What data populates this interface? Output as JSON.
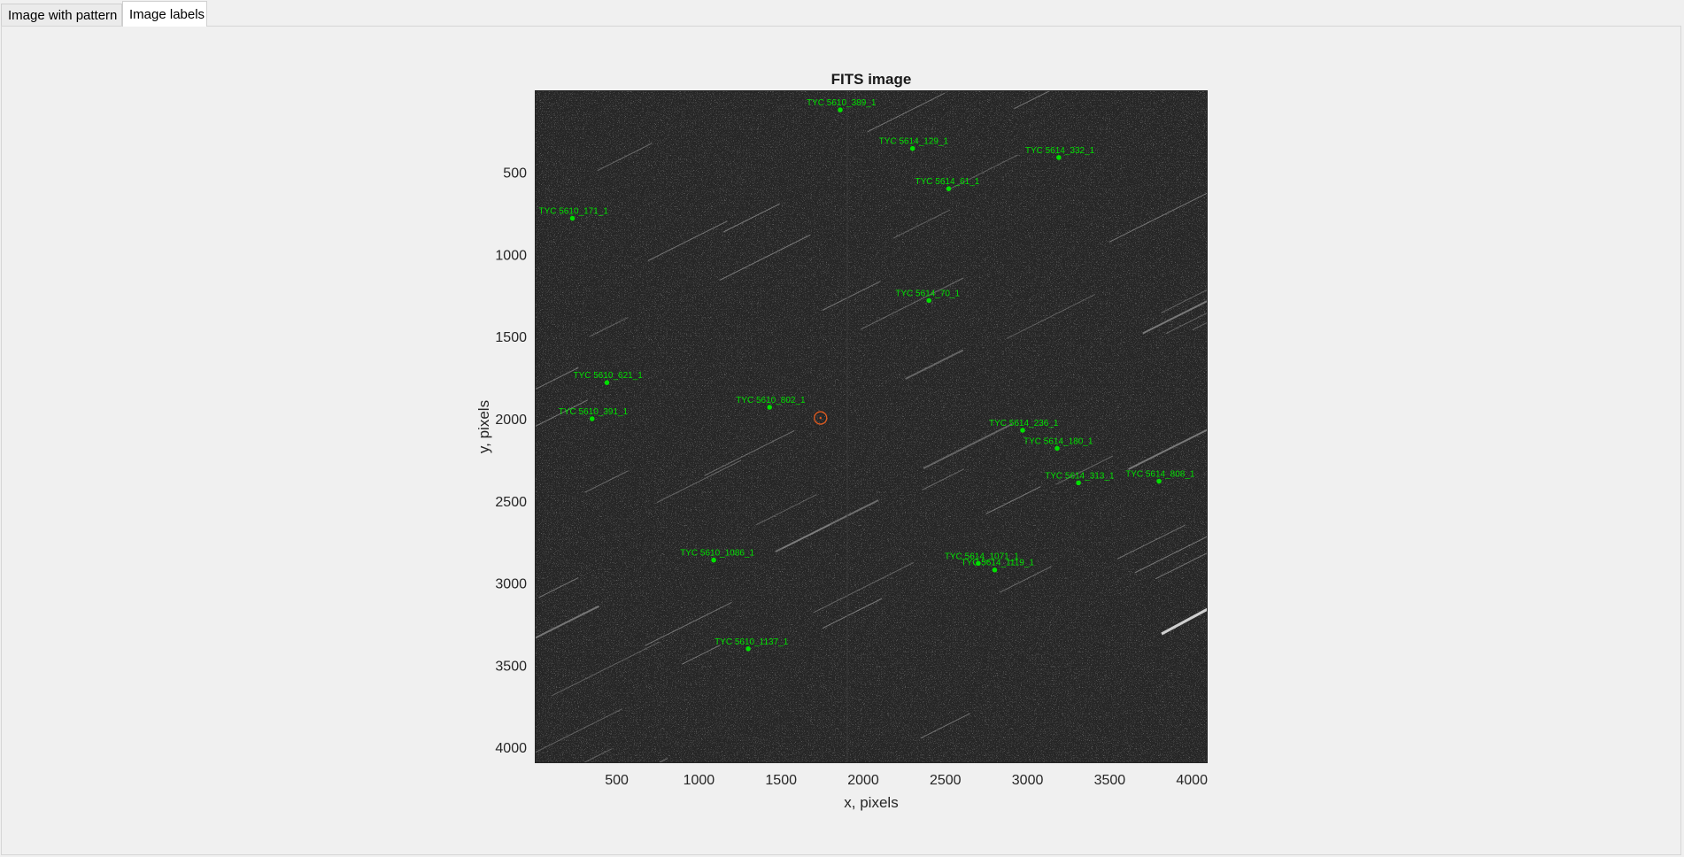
{
  "tabs": [
    {
      "label": "Image with pattern",
      "active": false
    },
    {
      "label": "Image labels",
      "active": true
    }
  ],
  "chart_data": {
    "type": "scatter",
    "title": "FITS image",
    "xlabel": "x, pixels",
    "ylabel": "y, pixels",
    "xlim": [
      1,
      4096
    ],
    "ylim": [
      1,
      4096
    ],
    "y_reversed": true,
    "xticks": [
      500,
      1000,
      1500,
      2000,
      2500,
      3000,
      3500,
      4000
    ],
    "yticks": [
      500,
      1000,
      1500,
      2000,
      2500,
      3000,
      3500,
      4000
    ],
    "background": "noisy dark star field",
    "marker_color": "#00e000",
    "center_marker": {
      "x": 1740,
      "y": 1995,
      "color": "#e05a1e"
    },
    "series": [
      {
        "points": [
          {
            "label": "TYC 5610_389_1",
            "x": 1860,
            "y": 120
          },
          {
            "label": "TYC 5614_129_1",
            "x": 2300,
            "y": 355
          },
          {
            "label": "TYC 5614_332_1",
            "x": 3190,
            "y": 410
          },
          {
            "label": "TYC 5614_61_1",
            "x": 2520,
            "y": 600
          },
          {
            "label": "TYC 5610_171_1",
            "x": 230,
            "y": 780
          },
          {
            "label": "TYC 5614_70_1",
            "x": 2400,
            "y": 1280
          },
          {
            "label": "TYC 5610_621_1",
            "x": 440,
            "y": 1780
          },
          {
            "label": "TYC 5610_802_1",
            "x": 1430,
            "y": 1930
          },
          {
            "label": "TYC 5610_391_1",
            "x": 350,
            "y": 2000
          },
          {
            "label": "TYC 5614_236_1",
            "x": 2970,
            "y": 2070
          },
          {
            "label": "TYC 5614_180_1",
            "x": 3180,
            "y": 2180
          },
          {
            "label": "TYC 5614_313_1",
            "x": 3310,
            "y": 2390
          },
          {
            "label": "TYC 5614_808_1",
            "x": 3800,
            "y": 2380
          },
          {
            "label": "TYC 5610_1086_1",
            "x": 1090,
            "y": 2860
          },
          {
            "label": "TYC 5614_1071_1",
            "x": 2700,
            "y": 2880
          },
          {
            "label": "TYC 5614_1119_1",
            "x": 2800,
            "y": 2920
          },
          {
            "label": "TYC 5610_1137_1",
            "x": 1300,
            "y": 3400
          }
        ]
      }
    ]
  }
}
